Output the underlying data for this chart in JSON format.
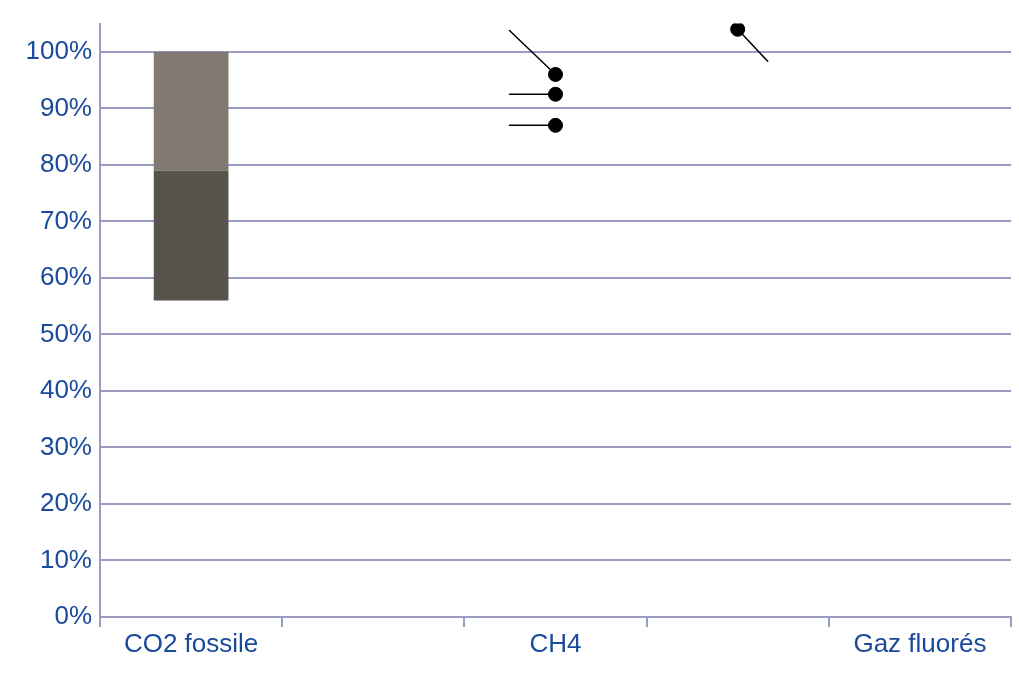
{
  "chart_data": {
    "type": "bar",
    "categories": [
      "CO2 fossile",
      null,
      "CH4",
      null,
      "Gaz fluorés"
    ],
    "series": [
      {
        "color": "#59534e",
        "base": [
          56,
          null,
          null,
          null,
          null
        ],
        "values": [
          23,
          null,
          null,
          null,
          null
        ]
      },
      {
        "color": "#817a72",
        "base": [
          79,
          null,
          null,
          null,
          null
        ],
        "values": [
          21,
          null,
          null,
          null,
          null
        ]
      },
      {
        "type": "scatter",
        "color": "#000000",
        "values": [
          null,
          null,
          96,
          null,
          null
        ]
      },
      {
        "type": "scatter",
        "color": "#000000",
        "values": [
          null,
          null,
          92.5,
          null,
          null
        ]
      },
      {
        "type": "scatter",
        "color": "#000000",
        "values": [
          null,
          null,
          87,
          null,
          null
        ]
      },
      {
        "type": "scatter",
        "color": "#000000",
        "values": [
          null,
          null,
          null,
          104,
          null
        ]
      }
    ],
    "ylim": [
      0,
      105
    ],
    "yticks": [
      {
        "value": 0,
        "label": "0%"
      },
      {
        "value": 10,
        "label": "10%"
      },
      {
        "value": 20,
        "label": "20%"
      },
      {
        "value": 30,
        "label": "30%"
      },
      {
        "value": 40,
        "label": "40%"
      },
      {
        "value": 50,
        "label": "50%"
      },
      {
        "value": 60,
        "label": "60%"
      },
      {
        "value": 70,
        "label": "70%"
      },
      {
        "value": 80,
        "label": "80%"
      },
      {
        "value": 90,
        "label": "90%"
      },
      {
        "value": 100,
        "label": "100%"
      }
    ],
    "grid": "y",
    "legend": false,
    "marker": "circle"
  }
}
